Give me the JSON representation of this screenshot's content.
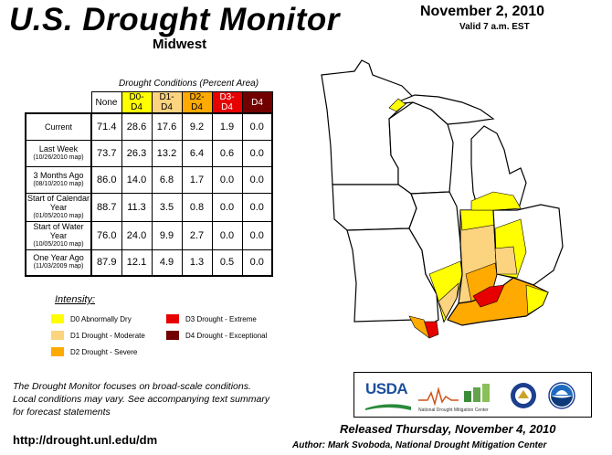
{
  "header": {
    "title": "U.S. Drought Monitor",
    "region": "Midwest",
    "date": "November 2, 2010",
    "valid": "Valid 7 a.m. EST"
  },
  "table": {
    "caption": "Drought Conditions (Percent Area)",
    "columns": [
      "None",
      "D0-D4",
      "D1-D4",
      "D2-D4",
      "D3-D4",
      "D4"
    ],
    "column_colors": [
      "#ffffff",
      "#ffff00",
      "#fcd37f",
      "#ffaa00",
      "#e60000",
      "#730000"
    ],
    "column_text_colors": [
      "#000000",
      "#000000",
      "#000000",
      "#000000",
      "#ffffff",
      "#ffffff"
    ],
    "rows": [
      {
        "label": "Current",
        "sublabel": "",
        "values": [
          "71.4",
          "28.6",
          "17.6",
          "9.2",
          "1.9",
          "0.0"
        ]
      },
      {
        "label": "Last Week",
        "sublabel": "(10/26/2010 map)",
        "values": [
          "73.7",
          "26.3",
          "13.2",
          "6.4",
          "0.6",
          "0.0"
        ]
      },
      {
        "label": "3 Months Ago",
        "sublabel": "(08/10/2010 map)",
        "values": [
          "86.0",
          "14.0",
          "6.8",
          "1.7",
          "0.0",
          "0.0"
        ]
      },
      {
        "label": "Start of Calendar Year",
        "sublabel": "(01/05/2010 map)",
        "values": [
          "88.7",
          "11.3",
          "3.5",
          "0.8",
          "0.0",
          "0.0"
        ]
      },
      {
        "label": "Start of Water Year",
        "sublabel": "(10/05/2010 map)",
        "values": [
          "76.0",
          "24.0",
          "9.9",
          "2.7",
          "0.0",
          "0.0"
        ]
      },
      {
        "label": "One Year Ago",
        "sublabel": "(11/03/2009 map)",
        "values": [
          "87.9",
          "12.1",
          "4.9",
          "1.3",
          "0.5",
          "0.0"
        ]
      }
    ]
  },
  "legend": {
    "title": "Intensity:",
    "items": [
      {
        "label": "D0 Abnormally Dry",
        "color": "#ffff00"
      },
      {
        "label": "D1 Drought - Moderate",
        "color": "#fcd37f"
      },
      {
        "label": "D2 Drought - Severe",
        "color": "#ffaa00"
      },
      {
        "label": "D3 Drought - Extreme",
        "color": "#e60000"
      },
      {
        "label": "D4 Drought - Exceptional",
        "color": "#730000"
      }
    ]
  },
  "footer": {
    "note_lines": [
      "The Drought Monitor focuses on broad-scale conditions.",
      "Local conditions may vary. See accompanying text summary",
      "for forecast statements"
    ],
    "url": "http://drought.unl.edu/dm",
    "released": "Released Thursday, November 4, 2010",
    "author": "Author: Mark Svoboda, National Drought Mitigation Center"
  },
  "logos": {
    "usda": "USDA",
    "ndmc": "National Drought Mitigation Center"
  },
  "map_colors": {
    "none": "#ffffff",
    "d0": "#ffff00",
    "d1": "#fcd37f",
    "d2": "#ffaa00",
    "d3": "#e60000"
  }
}
